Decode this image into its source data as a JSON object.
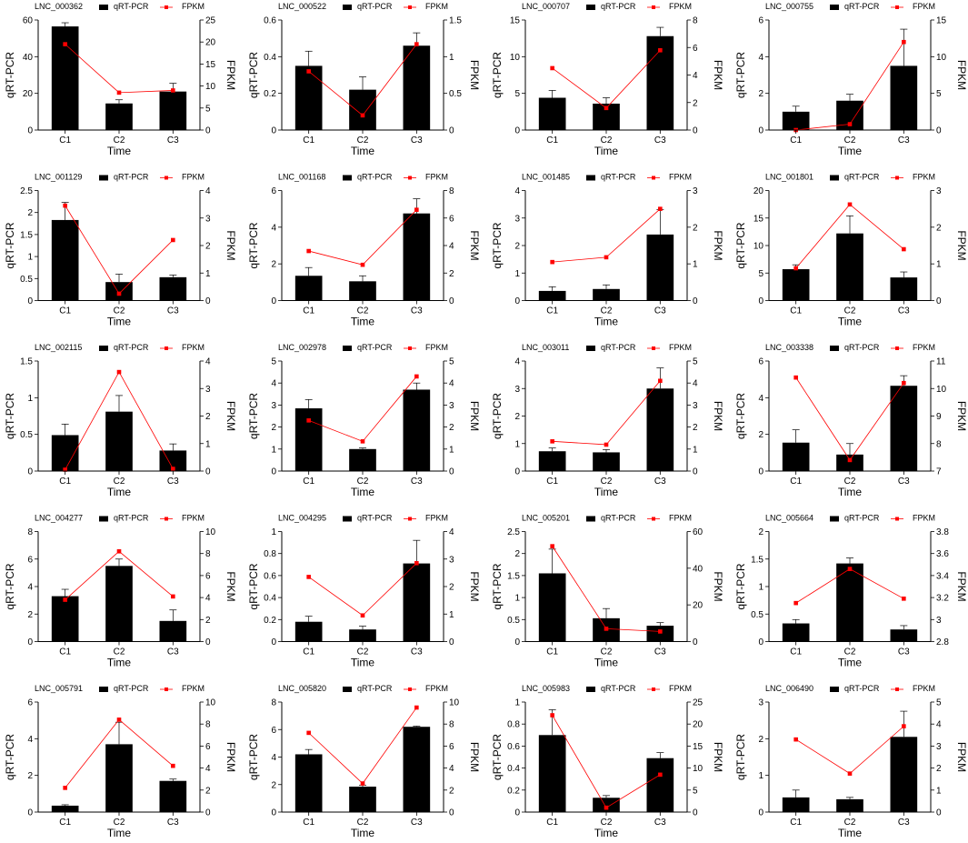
{
  "axis_text": {
    "x_label": "Time",
    "y_left": "qRT-PCR",
    "y_right": "FPKM",
    "legend_bar": "qRT-PCR",
    "legend_line": "FPKM"
  },
  "colors": {
    "bar": "#000000",
    "line": "#ff0000",
    "axis": "#000000"
  },
  "chart_data": [
    {
      "type": "bar+line",
      "title": "LNC_000362",
      "categories": [
        "C1",
        "C2",
        "C3"
      ],
      "xlabel": "Time",
      "ylabel": "qRT-PCR",
      "y2label": "FPKM",
      "ylim": [
        0,
        60
      ],
      "yticks": [
        0,
        20,
        40,
        60
      ],
      "y2lim": [
        0,
        25
      ],
      "y2ticks": [
        0,
        5,
        10,
        15,
        20,
        25
      ],
      "series": [
        {
          "name": "qRT-PCR",
          "kind": "bar",
          "axis": "left",
          "values": [
            56.5,
            14.5,
            21
          ],
          "errors": [
            2,
            2,
            4.5
          ]
        },
        {
          "name": "FPKM",
          "kind": "line",
          "axis": "right",
          "values": [
            19.5,
            8.5,
            9
          ]
        }
      ]
    },
    {
      "type": "bar+line",
      "title": "LNC_000522",
      "categories": [
        "C1",
        "C2",
        "C3"
      ],
      "xlabel": "Time",
      "ylabel": "qRT-PCR",
      "y2label": "FPKM",
      "ylim": [
        0,
        0.6
      ],
      "yticks": [
        0,
        0.2,
        0.4,
        0.6
      ],
      "y2lim": [
        0,
        1.5
      ],
      "y2ticks": [
        0,
        0.5,
        1,
        1.5
      ],
      "series": [
        {
          "name": "qRT-PCR",
          "kind": "bar",
          "axis": "left",
          "values": [
            0.35,
            0.22,
            0.46
          ],
          "errors": [
            0.08,
            0.07,
            0.07
          ]
        },
        {
          "name": "FPKM",
          "kind": "line",
          "axis": "right",
          "values": [
            0.8,
            0.2,
            1.17
          ]
        }
      ]
    },
    {
      "type": "bar+line",
      "title": "LNC_000707",
      "categories": [
        "C1",
        "C2",
        "C3"
      ],
      "xlabel": "Time",
      "ylabel": "qRT-PCR",
      "y2label": "FPKM",
      "ylim": [
        0,
        15
      ],
      "yticks": [
        0,
        5,
        10,
        15
      ],
      "y2lim": [
        0,
        8
      ],
      "y2ticks": [
        0,
        2,
        4,
        6,
        8
      ],
      "series": [
        {
          "name": "qRT-PCR",
          "kind": "bar",
          "axis": "left",
          "values": [
            4.4,
            3.6,
            12.8
          ],
          "errors": [
            1,
            0.8,
            1.2
          ]
        },
        {
          "name": "FPKM",
          "kind": "line",
          "axis": "right",
          "values": [
            4.5,
            1.6,
            5.8
          ]
        }
      ]
    },
    {
      "type": "bar+line",
      "title": "LNC_000755",
      "categories": [
        "C1",
        "C2",
        "C3"
      ],
      "xlabel": "Time",
      "ylabel": "qRT-PCR",
      "y2label": "FPKM",
      "ylim": [
        0,
        6
      ],
      "yticks": [
        0,
        2,
        4,
        6
      ],
      "y2lim": [
        0,
        15
      ],
      "y2ticks": [
        0,
        5,
        10,
        15
      ],
      "series": [
        {
          "name": "qRT-PCR",
          "kind": "bar",
          "axis": "left",
          "values": [
            1,
            1.6,
            3.5
          ],
          "errors": [
            0.3,
            0.35,
            2
          ]
        },
        {
          "name": "FPKM",
          "kind": "line",
          "axis": "right",
          "values": [
            0,
            0.8,
            12
          ]
        }
      ]
    },
    {
      "type": "bar+line",
      "title": "LNC_001129",
      "categories": [
        "C1",
        "C2",
        "C3"
      ],
      "xlabel": "Time",
      "ylabel": "qRT-PCR",
      "y2label": "FPKM",
      "ylim": [
        0,
        2.5
      ],
      "yticks": [
        0,
        0.5,
        1,
        1.5,
        2,
        2.5
      ],
      "y2lim": [
        0,
        4
      ],
      "y2ticks": [
        0,
        1,
        2,
        3,
        4
      ],
      "series": [
        {
          "name": "qRT-PCR",
          "kind": "bar",
          "axis": "left",
          "values": [
            1.83,
            0.42,
            0.53
          ],
          "errors": [
            0.4,
            0.18,
            0.05
          ]
        },
        {
          "name": "FPKM",
          "kind": "line",
          "axis": "right",
          "values": [
            3.45,
            0.25,
            2.2
          ]
        }
      ]
    },
    {
      "type": "bar+line",
      "title": "LNC_001168",
      "categories": [
        "C1",
        "C2",
        "C3"
      ],
      "xlabel": "Time",
      "ylabel": "qRT-PCR",
      "y2label": "FPKM",
      "ylim": [
        0,
        6
      ],
      "yticks": [
        0,
        2,
        4,
        6
      ],
      "y2lim": [
        0,
        8
      ],
      "y2ticks": [
        0,
        2,
        4,
        6,
        8
      ],
      "series": [
        {
          "name": "qRT-PCR",
          "kind": "bar",
          "axis": "left",
          "values": [
            1.35,
            1.05,
            4.75
          ],
          "errors": [
            0.45,
            0.3,
            0.8
          ]
        },
        {
          "name": "FPKM",
          "kind": "line",
          "axis": "right",
          "values": [
            3.6,
            2.6,
            6.6
          ]
        }
      ]
    },
    {
      "type": "bar+line",
      "title": "LNC_001485",
      "categories": [
        "C1",
        "C2",
        "C3"
      ],
      "xlabel": "Time",
      "ylabel": "qRT-PCR",
      "y2label": "FPKM",
      "ylim": [
        0,
        4
      ],
      "yticks": [
        0,
        1,
        2,
        3,
        4
      ],
      "y2lim": [
        0,
        3
      ],
      "y2ticks": [
        0,
        1,
        2,
        3
      ],
      "series": [
        {
          "name": "qRT-PCR",
          "kind": "bar",
          "axis": "left",
          "values": [
            0.35,
            0.42,
            2.4
          ],
          "errors": [
            0.15,
            0.15,
            0.9
          ]
        },
        {
          "name": "FPKM",
          "kind": "line",
          "axis": "right",
          "values": [
            1.05,
            1.18,
            2.5
          ]
        }
      ]
    },
    {
      "type": "bar+line",
      "title": "LNC_001801",
      "categories": [
        "C1",
        "C2",
        "C3"
      ],
      "xlabel": "Time",
      "ylabel": "qRT-PCR",
      "y2label": "FPKM",
      "ylim": [
        0,
        20
      ],
      "yticks": [
        0,
        5,
        10,
        15,
        20
      ],
      "y2lim": [
        0,
        3
      ],
      "y2ticks": [
        0,
        1,
        2,
        3
      ],
      "series": [
        {
          "name": "qRT-PCR",
          "kind": "bar",
          "axis": "left",
          "values": [
            5.7,
            12.2,
            4.2
          ],
          "errors": [
            0.8,
            3.2,
            1
          ]
        },
        {
          "name": "FPKM",
          "kind": "line",
          "axis": "right",
          "values": [
            0.88,
            2.62,
            1.4
          ]
        }
      ]
    },
    {
      "type": "bar+line",
      "title": "LNC_002115",
      "categories": [
        "C1",
        "C2",
        "C3"
      ],
      "xlabel": "Time",
      "ylabel": "qRT-PCR",
      "y2label": "FPKM",
      "ylim": [
        0,
        1.5
      ],
      "yticks": [
        0,
        0.5,
        1,
        1.5
      ],
      "y2lim": [
        0,
        4
      ],
      "y2ticks": [
        0,
        1,
        2,
        3,
        4
      ],
      "series": [
        {
          "name": "qRT-PCR",
          "kind": "bar",
          "axis": "left",
          "values": [
            0.49,
            0.81,
            0.28
          ],
          "errors": [
            0.15,
            0.22,
            0.09
          ]
        },
        {
          "name": "FPKM",
          "kind": "line",
          "axis": "right",
          "values": [
            0.05,
            3.6,
            0.08
          ]
        }
      ]
    },
    {
      "type": "bar+line",
      "title": "LNC_002978",
      "categories": [
        "C1",
        "C2",
        "C3"
      ],
      "xlabel": "Time",
      "ylabel": "qRT-PCR",
      "y2label": "FPKM",
      "ylim": [
        0,
        5
      ],
      "yticks": [
        0,
        1,
        2,
        3,
        4,
        5
      ],
      "y2lim": [
        0,
        5
      ],
      "y2ticks": [
        0,
        1,
        2,
        3,
        4,
        5
      ],
      "series": [
        {
          "name": "qRT-PCR",
          "kind": "bar",
          "axis": "left",
          "values": [
            2.85,
            1,
            3.7
          ],
          "errors": [
            0.4,
            0.05,
            0.3
          ]
        },
        {
          "name": "FPKM",
          "kind": "line",
          "axis": "right",
          "values": [
            2.3,
            1.35,
            4.3
          ]
        }
      ]
    },
    {
      "type": "bar+line",
      "title": "LNC_003011",
      "categories": [
        "C1",
        "C2",
        "C3"
      ],
      "xlabel": "Time",
      "ylabel": "qRT-PCR",
      "y2label": "FPKM",
      "ylim": [
        0,
        4
      ],
      "yticks": [
        0,
        1,
        2,
        3,
        4
      ],
      "y2lim": [
        0,
        5
      ],
      "y2ticks": [
        0,
        1,
        2,
        3,
        4,
        5
      ],
      "series": [
        {
          "name": "qRT-PCR",
          "kind": "bar",
          "axis": "left",
          "values": [
            0.72,
            0.68,
            3
          ],
          "errors": [
            0.12,
            0.1,
            0.75
          ]
        },
        {
          "name": "FPKM",
          "kind": "line",
          "axis": "right",
          "values": [
            1.35,
            1.2,
            4.1
          ]
        }
      ]
    },
    {
      "type": "bar+line",
      "title": "LNC_003338",
      "categories": [
        "C1",
        "C2",
        "C3"
      ],
      "xlabel": "Time",
      "ylabel": "qRT-PCR",
      "y2label": "FPKM",
      "ylim": [
        0,
        6
      ],
      "yticks": [
        0,
        2,
        4,
        6
      ],
      "y2lim": [
        7,
        11
      ],
      "y2ticks": [
        7,
        8,
        9,
        10,
        11
      ],
      "series": [
        {
          "name": "qRT-PCR",
          "kind": "bar",
          "axis": "left",
          "values": [
            1.55,
            0.9,
            4.65
          ],
          "errors": [
            0.7,
            0.6,
            0.55
          ]
        },
        {
          "name": "FPKM",
          "kind": "line",
          "axis": "right",
          "values": [
            10.4,
            7.4,
            10.2
          ]
        }
      ]
    },
    {
      "type": "bar+line",
      "title": "LNC_004277",
      "categories": [
        "C1",
        "C2",
        "C3"
      ],
      "xlabel": "Time",
      "ylabel": "qRT-PCR",
      "y2label": "FPKM",
      "ylim": [
        0,
        8
      ],
      "yticks": [
        0,
        2,
        4,
        6,
        8
      ],
      "y2lim": [
        0,
        10
      ],
      "y2ticks": [
        0,
        2,
        4,
        6,
        8,
        10
      ],
      "series": [
        {
          "name": "qRT-PCR",
          "kind": "bar",
          "axis": "left",
          "values": [
            3.3,
            5.5,
            1.5
          ],
          "errors": [
            0.5,
            0.5,
            0.8
          ]
        },
        {
          "name": "FPKM",
          "kind": "line",
          "axis": "right",
          "values": [
            3.8,
            8.2,
            4.1
          ]
        }
      ]
    },
    {
      "type": "bar+line",
      "title": "LNC_004295",
      "categories": [
        "C1",
        "C2",
        "C3"
      ],
      "xlabel": "Time",
      "ylabel": "qRT-PCR",
      "y2label": "FPKM",
      "ylim": [
        0,
        1
      ],
      "yticks": [
        0,
        0.2,
        0.4,
        0.6,
        0.8,
        1
      ],
      "y2lim": [
        0,
        4
      ],
      "y2ticks": [
        0,
        1,
        2,
        3,
        4
      ],
      "series": [
        {
          "name": "qRT-PCR",
          "kind": "bar",
          "axis": "left",
          "values": [
            0.18,
            0.11,
            0.71
          ],
          "errors": [
            0.05,
            0.03,
            0.21
          ]
        },
        {
          "name": "FPKM",
          "kind": "line",
          "axis": "right",
          "values": [
            2.35,
            0.95,
            2.85
          ]
        }
      ]
    },
    {
      "type": "bar+line",
      "title": "LNC_005201",
      "categories": [
        "C1",
        "C2",
        "C3"
      ],
      "xlabel": "Time",
      "ylabel": "qRT-PCR",
      "y2label": "FPKM",
      "ylim": [
        0,
        2.5
      ],
      "yticks": [
        0,
        0.5,
        1,
        1.5,
        2,
        2.5
      ],
      "y2lim": [
        0,
        60
      ],
      "y2ticks": [
        0,
        20,
        40,
        60
      ],
      "series": [
        {
          "name": "qRT-PCR",
          "kind": "bar",
          "axis": "left",
          "values": [
            1.55,
            0.53,
            0.36
          ],
          "errors": [
            0.55,
            0.22,
            0.07
          ]
        },
        {
          "name": "FPKM",
          "kind": "line",
          "axis": "right",
          "values": [
            52,
            7,
            5.5
          ]
        }
      ]
    },
    {
      "type": "bar+line",
      "title": "LNC_005664",
      "categories": [
        "C1",
        "C2",
        "C3"
      ],
      "xlabel": "Time",
      "ylabel": "qRT-PCR",
      "y2label": "FPKM",
      "ylim": [
        0,
        2
      ],
      "yticks": [
        0,
        0.5,
        1,
        1.5,
        2
      ],
      "y2lim": [
        2.8,
        3.8
      ],
      "y2ticks": [
        2.8,
        3,
        3.2,
        3.4,
        3.6,
        3.8
      ],
      "series": [
        {
          "name": "qRT-PCR",
          "kind": "bar",
          "axis": "left",
          "values": [
            0.33,
            1.42,
            0.22
          ],
          "errors": [
            0.07,
            0.1,
            0.07
          ]
        },
        {
          "name": "FPKM",
          "kind": "line",
          "axis": "right",
          "values": [
            3.15,
            3.46,
            3.19
          ]
        }
      ]
    },
    {
      "type": "bar+line",
      "title": "LNC_005791",
      "categories": [
        "C1",
        "C2",
        "C3"
      ],
      "xlabel": "Time",
      "ylabel": "qRT-PCR",
      "y2label": "FPKM",
      "ylim": [
        0,
        6
      ],
      "yticks": [
        0,
        2,
        4,
        6
      ],
      "y2lim": [
        0,
        10
      ],
      "y2ticks": [
        0,
        2,
        4,
        6,
        8,
        10
      ],
      "series": [
        {
          "name": "qRT-PCR",
          "kind": "bar",
          "axis": "left",
          "values": [
            0.35,
            3.7,
            1.7
          ],
          "errors": [
            0.05,
            1.2,
            0.1
          ]
        },
        {
          "name": "FPKM",
          "kind": "line",
          "axis": "right",
          "values": [
            2.2,
            8.4,
            4.2
          ]
        }
      ]
    },
    {
      "type": "bar+line",
      "title": "LNC_005820",
      "categories": [
        "C1",
        "C2",
        "C3"
      ],
      "xlabel": "Time",
      "ylabel": "qRT-PCR",
      "y2label": "FPKM",
      "ylim": [
        0,
        8
      ],
      "yticks": [
        0,
        2,
        4,
        6,
        8
      ],
      "y2lim": [
        0,
        10
      ],
      "y2ticks": [
        0,
        2,
        4,
        6,
        8,
        10
      ],
      "series": [
        {
          "name": "qRT-PCR",
          "kind": "bar",
          "axis": "left",
          "values": [
            4.2,
            1.85,
            6.2
          ],
          "errors": [
            0.35,
            0.1,
            0.05
          ]
        },
        {
          "name": "FPKM",
          "kind": "line",
          "axis": "right",
          "values": [
            7.2,
            2.6,
            9.5
          ]
        }
      ]
    },
    {
      "type": "bar+line",
      "title": "LNC_005983",
      "categories": [
        "C1",
        "C2",
        "C3"
      ],
      "xlabel": "Time",
      "ylabel": "qRT-PCR",
      "y2label": "FPKM",
      "ylim": [
        0,
        1
      ],
      "yticks": [
        0,
        0.2,
        0.4,
        0.6,
        0.8,
        1
      ],
      "y2lim": [
        0,
        25
      ],
      "y2ticks": [
        0,
        5,
        10,
        15,
        20,
        25
      ],
      "series": [
        {
          "name": "qRT-PCR",
          "kind": "bar",
          "axis": "left",
          "values": [
            0.7,
            0.13,
            0.49
          ],
          "errors": [
            0.23,
            0.02,
            0.05
          ]
        },
        {
          "name": "FPKM",
          "kind": "line",
          "axis": "right",
          "values": [
            22,
            1,
            8.5
          ]
        }
      ]
    },
    {
      "type": "bar+line",
      "title": "LNC_006490",
      "categories": [
        "C1",
        "C2",
        "C3"
      ],
      "xlabel": "Time",
      "ylabel": "qRT-PCR",
      "y2label": "FPKM",
      "ylim": [
        0,
        3
      ],
      "yticks": [
        0,
        1,
        2,
        3
      ],
      "y2lim": [
        0,
        5
      ],
      "y2ticks": [
        0,
        1,
        2,
        3,
        4,
        5
      ],
      "series": [
        {
          "name": "qRT-PCR",
          "kind": "bar",
          "axis": "left",
          "values": [
            0.4,
            0.35,
            2.05
          ],
          "errors": [
            0.2,
            0.05,
            0.7
          ]
        },
        {
          "name": "FPKM",
          "kind": "line",
          "axis": "right",
          "values": [
            3.3,
            1.75,
            3.9
          ]
        }
      ]
    }
  ]
}
